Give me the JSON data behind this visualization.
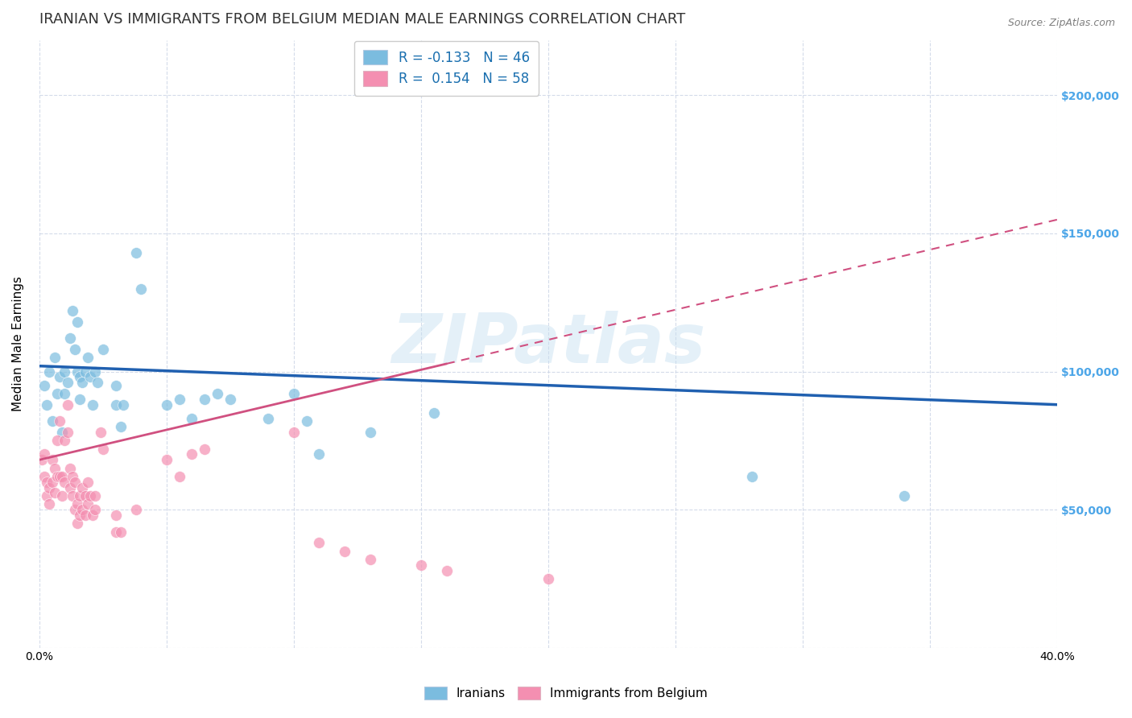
{
  "title": "IRANIAN VS IMMIGRANTS FROM BELGIUM MEDIAN MALE EARNINGS CORRELATION CHART",
  "source": "Source: ZipAtlas.com",
  "ylabel": "Median Male Earnings",
  "xlim": [
    0.0,
    0.4
  ],
  "ylim": [
    0,
    220000
  ],
  "yticks": [
    0,
    50000,
    100000,
    150000,
    200000
  ],
  "ytick_labels": [
    "",
    "$50,000",
    "$100,000",
    "$150,000",
    "$200,000"
  ],
  "xticks": [
    0.0,
    0.05,
    0.1,
    0.15,
    0.2,
    0.25,
    0.3,
    0.35,
    0.4
  ],
  "xtick_labels": [
    "0.0%",
    "",
    "",
    "",
    "",
    "",
    "",
    "",
    "40.0%"
  ],
  "watermark": "ZIPatlas",
  "legend_line1": "R = -0.133   N = 46",
  "legend_line2": "R =  0.154   N = 58",
  "iranians_color": "#7bbcdf",
  "belgium_color": "#f48fb1",
  "iranians_line_color": "#2060b0",
  "belgium_line_color": "#d05080",
  "iranians_scatter": [
    [
      0.002,
      95000
    ],
    [
      0.003,
      88000
    ],
    [
      0.004,
      100000
    ],
    [
      0.005,
      82000
    ],
    [
      0.006,
      105000
    ],
    [
      0.007,
      92000
    ],
    [
      0.008,
      98000
    ],
    [
      0.009,
      78000
    ],
    [
      0.01,
      100000
    ],
    [
      0.01,
      92000
    ],
    [
      0.011,
      96000
    ],
    [
      0.012,
      112000
    ],
    [
      0.013,
      122000
    ],
    [
      0.014,
      108000
    ],
    [
      0.015,
      100000
    ],
    [
      0.015,
      118000
    ],
    [
      0.016,
      98000
    ],
    [
      0.016,
      90000
    ],
    [
      0.017,
      96000
    ],
    [
      0.018,
      100000
    ],
    [
      0.019,
      105000
    ],
    [
      0.02,
      98000
    ],
    [
      0.021,
      88000
    ],
    [
      0.022,
      100000
    ],
    [
      0.023,
      96000
    ],
    [
      0.025,
      108000
    ],
    [
      0.03,
      95000
    ],
    [
      0.03,
      88000
    ],
    [
      0.032,
      80000
    ],
    [
      0.033,
      88000
    ],
    [
      0.038,
      143000
    ],
    [
      0.04,
      130000
    ],
    [
      0.05,
      88000
    ],
    [
      0.055,
      90000
    ],
    [
      0.06,
      83000
    ],
    [
      0.065,
      90000
    ],
    [
      0.07,
      92000
    ],
    [
      0.075,
      90000
    ],
    [
      0.09,
      83000
    ],
    [
      0.1,
      92000
    ],
    [
      0.105,
      82000
    ],
    [
      0.11,
      70000
    ],
    [
      0.13,
      78000
    ],
    [
      0.155,
      85000
    ],
    [
      0.28,
      62000
    ],
    [
      0.34,
      55000
    ]
  ],
  "belgium_scatter": [
    [
      0.001,
      68000
    ],
    [
      0.002,
      62000
    ],
    [
      0.002,
      70000
    ],
    [
      0.003,
      60000
    ],
    [
      0.003,
      55000
    ],
    [
      0.004,
      52000
    ],
    [
      0.004,
      58000
    ],
    [
      0.005,
      68000
    ],
    [
      0.005,
      60000
    ],
    [
      0.006,
      65000
    ],
    [
      0.006,
      56000
    ],
    [
      0.007,
      62000
    ],
    [
      0.007,
      75000
    ],
    [
      0.008,
      62000
    ],
    [
      0.008,
      82000
    ],
    [
      0.009,
      62000
    ],
    [
      0.009,
      55000
    ],
    [
      0.01,
      60000
    ],
    [
      0.01,
      75000
    ],
    [
      0.011,
      78000
    ],
    [
      0.011,
      88000
    ],
    [
      0.012,
      65000
    ],
    [
      0.012,
      58000
    ],
    [
      0.013,
      62000
    ],
    [
      0.013,
      55000
    ],
    [
      0.014,
      50000
    ],
    [
      0.014,
      60000
    ],
    [
      0.015,
      52000
    ],
    [
      0.015,
      45000
    ],
    [
      0.016,
      55000
    ],
    [
      0.016,
      48000
    ],
    [
      0.017,
      58000
    ],
    [
      0.017,
      50000
    ],
    [
      0.018,
      55000
    ],
    [
      0.018,
      48000
    ],
    [
      0.019,
      60000
    ],
    [
      0.019,
      52000
    ],
    [
      0.02,
      55000
    ],
    [
      0.021,
      48000
    ],
    [
      0.022,
      55000
    ],
    [
      0.022,
      50000
    ],
    [
      0.024,
      78000
    ],
    [
      0.025,
      72000
    ],
    [
      0.03,
      48000
    ],
    [
      0.03,
      42000
    ],
    [
      0.032,
      42000
    ],
    [
      0.038,
      50000
    ],
    [
      0.05,
      68000
    ],
    [
      0.055,
      62000
    ],
    [
      0.06,
      70000
    ],
    [
      0.065,
      72000
    ],
    [
      0.1,
      78000
    ],
    [
      0.11,
      38000
    ],
    [
      0.12,
      35000
    ],
    [
      0.13,
      32000
    ],
    [
      0.15,
      30000
    ],
    [
      0.16,
      28000
    ],
    [
      0.2,
      25000
    ]
  ],
  "background_color": "#ffffff",
  "title_color": "#333333",
  "axis_label_color": "#4da6e8",
  "grid_color": "#d0d8e8",
  "title_fontsize": 13,
  "axis_label_fontsize": 11,
  "tick_fontsize": 10,
  "legend_fontsize": 12,
  "legend_text_color": "#1a6faf"
}
